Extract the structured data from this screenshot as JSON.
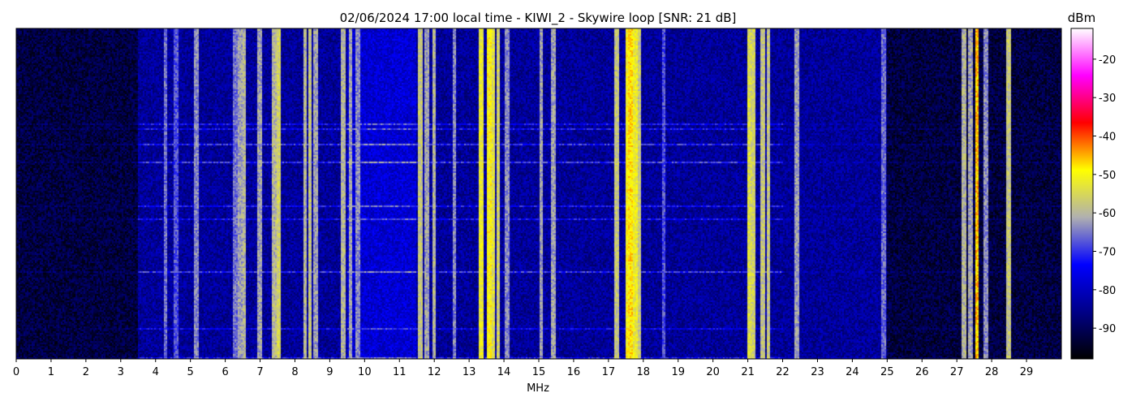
{
  "chart_data": {
    "type": "heatmap",
    "title": "02/06/2024 17:00 local time - KIWI_2 - Skywire loop [SNR: 21 dB]",
    "xlabel": "MHz",
    "xlim": [
      0,
      30
    ],
    "x_ticks": [
      "0",
      "1",
      "2",
      "3",
      "4",
      "5",
      "6",
      "7",
      "8",
      "9",
      "10",
      "11",
      "12",
      "13",
      "14",
      "15",
      "16",
      "17",
      "18",
      "19",
      "20",
      "21",
      "22",
      "23",
      "24",
      "25",
      "26",
      "27",
      "28",
      "29"
    ],
    "colorbar": {
      "label": "dBm",
      "range": [
        -98,
        -12
      ],
      "ticks": [
        "-20",
        "-30",
        "-40",
        "-50",
        "-60",
        "-70",
        "-80",
        "-90"
      ],
      "colormap": [
        "#000000",
        "#000088",
        "#0000ff",
        "#b0b0b0",
        "#ffff00",
        "#ff0000",
        "#ff00ff",
        "#ffffff"
      ]
    },
    "noise_floor_dbm": -88,
    "active_band_mhz": [
      3.5,
      25.0
    ],
    "strong_signals": [
      {
        "mhz": 4.3,
        "dbm": -66
      },
      {
        "mhz": 4.6,
        "dbm": -68
      },
      {
        "mhz": 5.2,
        "dbm": -64
      },
      {
        "mhz": 6.3,
        "dbm": -66
      },
      {
        "mhz": 6.45,
        "dbm": -62
      },
      {
        "mhz": 6.55,
        "dbm": -60
      },
      {
        "mhz": 7.0,
        "dbm": -62
      },
      {
        "mhz": 7.4,
        "dbm": -60
      },
      {
        "mhz": 7.55,
        "dbm": -56
      },
      {
        "mhz": 8.3,
        "dbm": -60
      },
      {
        "mhz": 8.45,
        "dbm": -58
      },
      {
        "mhz": 8.6,
        "dbm": -62
      },
      {
        "mhz": 9.4,
        "dbm": -60
      },
      {
        "mhz": 9.6,
        "dbm": -62
      },
      {
        "mhz": 9.8,
        "dbm": -64
      },
      {
        "mhz": 11.6,
        "dbm": -58
      },
      {
        "mhz": 11.8,
        "dbm": -62
      },
      {
        "mhz": 12.0,
        "dbm": -60
      },
      {
        "mhz": 12.6,
        "dbm": -64
      },
      {
        "mhz": 13.35,
        "dbm": -52
      },
      {
        "mhz": 13.6,
        "dbm": -50
      },
      {
        "mhz": 13.7,
        "dbm": -54
      },
      {
        "mhz": 13.85,
        "dbm": -56
      },
      {
        "mhz": 14.1,
        "dbm": -64
      },
      {
        "mhz": 15.1,
        "dbm": -62
      },
      {
        "mhz": 15.45,
        "dbm": -62
      },
      {
        "mhz": 17.25,
        "dbm": -58
      },
      {
        "mhz": 17.55,
        "dbm": -50
      },
      {
        "mhz": 17.65,
        "dbm": -48
      },
      {
        "mhz": 17.8,
        "dbm": -52
      },
      {
        "mhz": 17.9,
        "dbm": -58
      },
      {
        "mhz": 18.6,
        "dbm": -68
      },
      {
        "mhz": 21.05,
        "dbm": -54
      },
      {
        "mhz": 21.15,
        "dbm": -56
      },
      {
        "mhz": 21.45,
        "dbm": -58
      },
      {
        "mhz": 21.6,
        "dbm": -58
      },
      {
        "mhz": 22.4,
        "dbm": -62
      },
      {
        "mhz": 24.9,
        "dbm": -66
      },
      {
        "mhz": 27.2,
        "dbm": -60
      },
      {
        "mhz": 27.4,
        "dbm": -62
      },
      {
        "mhz": 27.6,
        "dbm": -46
      },
      {
        "mhz": 27.85,
        "dbm": -64
      },
      {
        "mhz": 28.5,
        "dbm": -58
      }
    ]
  }
}
